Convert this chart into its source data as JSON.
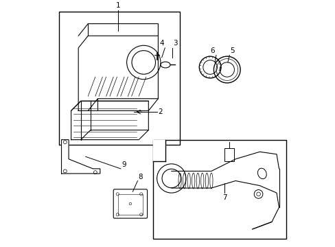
{
  "background_color": "#ffffff",
  "line_color": "#000000",
  "fig_width": 4.89,
  "fig_height": 3.6,
  "dpi": 100,
  "label_fontsize": 7.5
}
